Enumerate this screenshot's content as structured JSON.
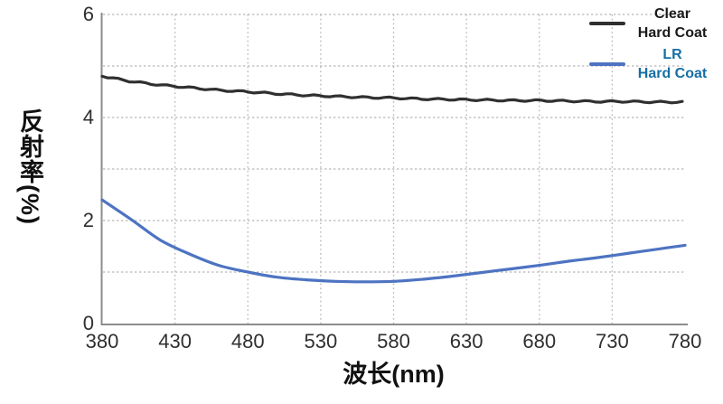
{
  "chart_data": {
    "type": "line",
    "title": "",
    "xlabel": "波长(nm)",
    "ylabel": "反射率(%)",
    "xlim": [
      380,
      780
    ],
    "ylim": [
      0,
      6
    ],
    "xticks": [
      380,
      430,
      480,
      530,
      580,
      630,
      680,
      730,
      780
    ],
    "yticks": [
      0,
      2,
      4,
      6
    ],
    "grid": {
      "style": "dotted",
      "color": "#b8b8b8",
      "horizontal_lines_at": [
        1,
        2,
        3,
        4,
        5,
        6
      ],
      "vertical_lines_at_nm": [
        430,
        480,
        530,
        580,
        630,
        680,
        730
      ]
    },
    "legend_position": "top-right",
    "x": [
      380,
      400,
      420,
      440,
      460,
      480,
      500,
      520,
      540,
      560,
      580,
      600,
      620,
      640,
      660,
      680,
      700,
      720,
      740,
      760,
      780
    ],
    "series": [
      {
        "name": "Clear Hard Coat",
        "color": "#303030",
        "label_color": "#1a1a1a",
        "wavy": true,
        "values": [
          4.8,
          4.7,
          4.63,
          4.58,
          4.53,
          4.5,
          4.46,
          4.43,
          4.41,
          4.39,
          4.38,
          4.36,
          4.35,
          4.34,
          4.33,
          4.33,
          4.32,
          4.31,
          4.31,
          4.3,
          4.3
        ]
      },
      {
        "name": "LR Hard Coat",
        "color": "#4d73c2",
        "label_color": "#156fa4",
        "wavy": false,
        "values": [
          2.4,
          2.02,
          1.62,
          1.35,
          1.13,
          1.0,
          0.9,
          0.85,
          0.82,
          0.81,
          0.82,
          0.86,
          0.92,
          0.99,
          1.06,
          1.13,
          1.21,
          1.28,
          1.36,
          1.44,
          1.52
        ]
      }
    ]
  },
  "legend": {
    "entries": [
      {
        "line1": "Clear",
        "line2": "Hard Coat"
      },
      {
        "line1": "LR",
        "line2": "Hard Coat"
      }
    ]
  },
  "colors": {
    "clear_line": "#303030",
    "lr_line": "#4d73c2",
    "lr_label_text": "#156fa4",
    "axis": "#8c8c8c",
    "grid": "#b8b8b8"
  }
}
